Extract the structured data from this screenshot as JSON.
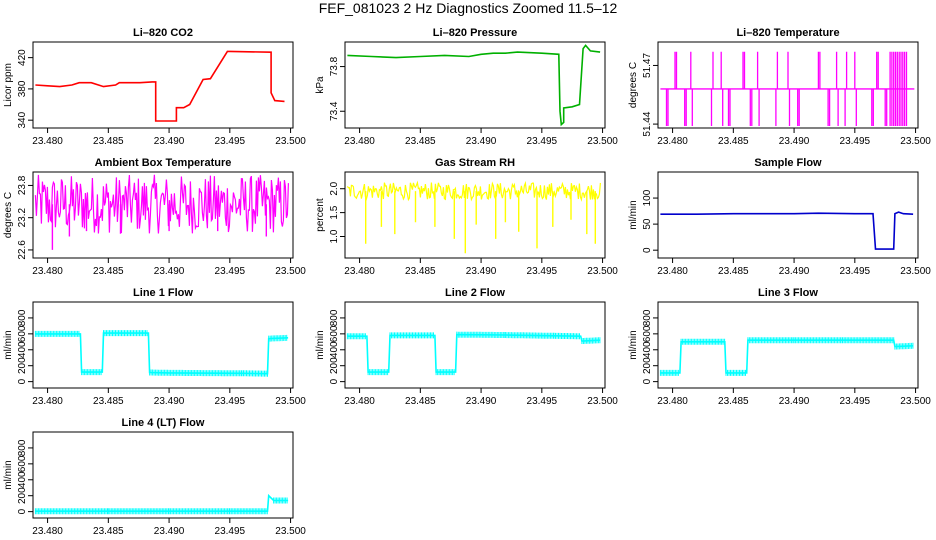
{
  "title": "FEF_081023  2 Hz Diagnostics Zoomed 11.5–12",
  "x_tick_labels": [
    "23.480",
    "23.485",
    "23.490",
    "23.495",
    "23.500"
  ],
  "chart_data": [
    {
      "type": "line",
      "title": "Li–820 CO2",
      "ylabel": "Licor ppm",
      "color": "#ff0000",
      "xlim": [
        23.4788,
        23.5002
      ],
      "ylim": [
        330,
        440
      ],
      "yticks": [
        340,
        380,
        420
      ],
      "x": [
        23.479,
        23.48,
        23.481,
        23.482,
        23.4826,
        23.4836,
        23.4846,
        23.4856,
        23.4859,
        23.4866,
        23.4876,
        23.4886,
        23.4889,
        23.4889,
        23.4896,
        23.4906,
        23.4906,
        23.4912,
        23.4912,
        23.4917,
        23.4917,
        23.4928,
        23.4934,
        23.4934,
        23.4948,
        23.495,
        23.495,
        23.4984,
        23.4984,
        23.4987,
        23.4995
      ],
      "y": [
        385,
        384,
        383,
        385,
        388,
        388,
        383,
        385,
        388,
        388,
        388,
        389,
        389,
        339,
        339,
        339,
        356,
        356,
        356,
        360,
        360,
        392,
        393,
        393,
        428,
        428,
        428,
        427,
        375,
        365,
        364
      ]
    },
    {
      "type": "line",
      "title": "Li–820 Pressure",
      "ylabel": "kPa",
      "color": "#00b000",
      "xlim": [
        23.4788,
        23.5002
      ],
      "ylim": [
        73.25,
        74.02
      ],
      "yticks": [
        73.4,
        73.8
      ],
      "x": [
        23.479,
        23.481,
        23.483,
        23.485,
        23.487,
        23.489,
        23.49,
        23.491,
        23.492,
        23.493,
        23.495,
        23.4964,
        23.4965,
        23.4966,
        23.4968,
        23.4968,
        23.4975,
        23.4981,
        23.4984,
        23.4986,
        23.499,
        23.4998
      ],
      "y": [
        73.9,
        73.89,
        73.88,
        73.89,
        73.9,
        73.89,
        73.91,
        73.92,
        73.92,
        73.93,
        73.92,
        73.91,
        73.4,
        73.28,
        73.3,
        73.43,
        73.44,
        73.46,
        73.96,
        73.99,
        73.94,
        73.93
      ]
    },
    {
      "type": "step",
      "title": "Li–820 Temperature",
      "ylabel": "degrees C",
      "color": "#ff00ff",
      "xlim": [
        23.4788,
        23.5002
      ],
      "ylim": [
        51.438,
        51.482
      ],
      "yticks": [
        51.44,
        51.47
      ],
      "tick_labels": [
        "51.44",
        "51.47"
      ],
      "baseline": 51.458,
      "high": 51.477,
      "low": 51.439,
      "spikes": [
        23.4795,
        23.4802,
        23.481,
        23.4815,
        23.4832,
        23.484,
        23.4846,
        23.4858,
        23.4864,
        23.487,
        23.4885,
        23.4895,
        23.4903,
        23.492,
        23.4928,
        23.4935,
        23.4942,
        23.495,
        23.4964,
        23.4968,
        23.4975
      ],
      "dense_range": [
        23.4979,
        23.4993
      ]
    },
    {
      "type": "noise",
      "title": "Ambient Box Temperature",
      "ylabel": "degrees C",
      "color": "#ff00ff",
      "xlim": [
        23.4788,
        23.5002
      ],
      "ylim": [
        22.45,
        24.05
      ],
      "yticks": [
        22.6,
        23.2,
        23.8
      ],
      "center": 23.45,
      "amp": 0.55,
      "dips": [
        [
          23.4804,
          22.6
        ],
        [
          23.4818,
          22.85
        ],
        [
          23.4832,
          22.95
        ],
        [
          23.486,
          22.9
        ],
        [
          23.49,
          22.95
        ],
        [
          23.494,
          22.95
        ],
        [
          23.498,
          22.85
        ]
      ]
    },
    {
      "type": "noise",
      "title": "Gas Stream RH",
      "ylabel": "percent",
      "color": "#ffff00",
      "xlim": [
        23.4788,
        23.5002
      ],
      "ylim": [
        0.55,
        2.35
      ],
      "yticks": [
        1.0,
        1.5,
        2.0
      ],
      "tick_labels": [
        "1.0",
        "1.5",
        "2.0"
      ],
      "center": 1.95,
      "amp": 0.18,
      "dips": [
        [
          23.4805,
          0.85
        ],
        [
          23.4818,
          1.2
        ],
        [
          23.4829,
          1.05
        ],
        [
          23.4846,
          1.3
        ],
        [
          23.4862,
          1.2
        ],
        [
          23.4878,
          0.95
        ],
        [
          23.4887,
          0.65
        ],
        [
          23.4896,
          1.25
        ],
        [
          23.4912,
          0.95
        ],
        [
          23.492,
          1.3
        ],
        [
          23.4931,
          1.1
        ],
        [
          23.4946,
          0.75
        ],
        [
          23.4959,
          1.2
        ],
        [
          23.4974,
          1.35
        ],
        [
          23.4987,
          1.05
        ],
        [
          23.4994,
          0.85
        ]
      ]
    },
    {
      "type": "line",
      "title": "Sample Flow",
      "ylabel": "ml/min",
      "color": "#0000cc",
      "xlim": [
        23.4788,
        23.5002
      ],
      "ylim": [
        -15,
        150
      ],
      "yticks": [
        0,
        50,
        100
      ],
      "x": [
        23.479,
        23.482,
        23.485,
        23.488,
        23.49,
        23.492,
        23.495,
        23.4965,
        23.4967,
        23.4982,
        23.4983,
        23.4986,
        23.499,
        23.4998
      ],
      "y": [
        69,
        69,
        70,
        70,
        70,
        71,
        70,
        70,
        2,
        2,
        70,
        73,
        70,
        69
      ]
    },
    {
      "type": "line",
      "title": "Line 1 Flow",
      "ylabel": "ml/min",
      "color": "#00ffff",
      "xlim": [
        23.4788,
        23.5002
      ],
      "ylim": [
        -80,
        1000
      ],
      "yticks": [
        0,
        200,
        400,
        600,
        800
      ],
      "x": [
        23.479,
        23.4827,
        23.4828,
        23.4845,
        23.4846,
        23.4883,
        23.4884,
        23.49,
        23.496,
        23.4981,
        23.4982,
        23.4998
      ],
      "y": [
        600,
        600,
        120,
        120,
        610,
        610,
        115,
        110,
        105,
        100,
        540,
        550
      ]
    },
    {
      "type": "line",
      "title": "Line 2 Flow",
      "ylabel": "ml/min",
      "color": "#00ffff",
      "xlim": [
        23.4788,
        23.5002
      ],
      "ylim": [
        -80,
        1000
      ],
      "yticks": [
        0,
        200,
        400,
        600,
        800
      ],
      "x": [
        23.479,
        23.4806,
        23.4807,
        23.4824,
        23.4825,
        23.4862,
        23.4863,
        23.4879,
        23.488,
        23.492,
        23.496,
        23.4982,
        23.4983,
        23.4998
      ],
      "y": [
        570,
        570,
        120,
        120,
        580,
        580,
        120,
        120,
        590,
        585,
        575,
        570,
        510,
        520
      ]
    },
    {
      "type": "line",
      "title": "Line 3 Flow",
      "ylabel": "ml/min",
      "color": "#00ffff",
      "xlim": [
        23.4788,
        23.5002
      ],
      "ylim": [
        -80,
        1000
      ],
      "yticks": [
        0,
        200,
        400,
        600,
        800
      ],
      "x": [
        23.479,
        23.4806,
        23.4807,
        23.4843,
        23.4844,
        23.4861,
        23.4862,
        23.49,
        23.494,
        23.4982,
        23.4983,
        23.4998
      ],
      "y": [
        110,
        110,
        500,
        500,
        110,
        110,
        520,
        520,
        520,
        520,
        440,
        450
      ]
    },
    {
      "type": "line",
      "title": "Line 4 (LT) Flow",
      "ylabel": "ml/min",
      "color": "#00ffff",
      "xlim": [
        23.4788,
        23.5002
      ],
      "ylim": [
        -80,
        1000
      ],
      "yticks": [
        0,
        200,
        400,
        600,
        800
      ],
      "x": [
        23.479,
        23.485,
        23.49,
        23.495,
        23.4981,
        23.4982,
        23.4986,
        23.4998
      ],
      "y": [
        5,
        5,
        5,
        5,
        5,
        200,
        140,
        140
      ]
    }
  ]
}
